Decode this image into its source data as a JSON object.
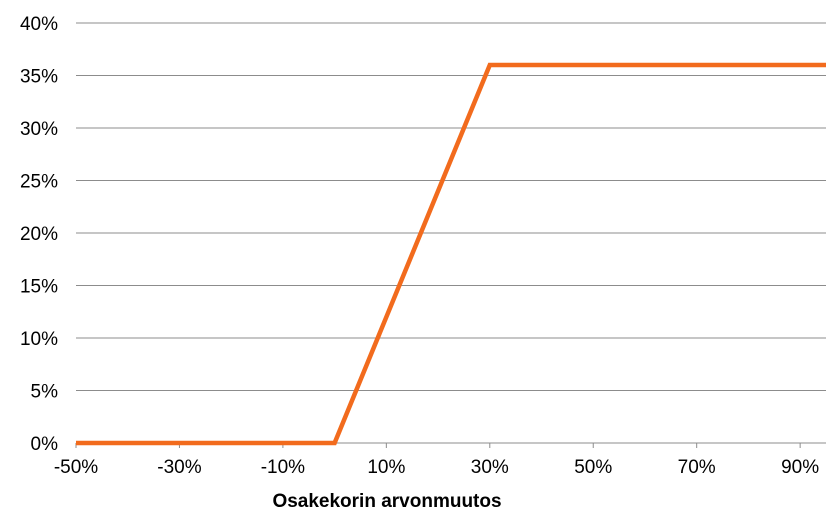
{
  "chart_data": {
    "type": "line",
    "title": "",
    "xlabel": "Osakekorin arvonmuutos",
    "ylabel": "",
    "xlim": [
      -50,
      95
    ],
    "ylim": [
      0,
      40
    ],
    "grid": true,
    "x_ticks": [
      -50,
      -30,
      -10,
      10,
      30,
      50,
      70,
      90
    ],
    "x_tick_labels": [
      "-50%",
      "-30%",
      "-10%",
      "10%",
      "30%",
      "50%",
      "70%",
      "90%"
    ],
    "y_ticks": [
      0,
      5,
      10,
      15,
      20,
      25,
      30,
      35,
      40
    ],
    "y_tick_labels": [
      "0%",
      "5%",
      "10%",
      "15%",
      "20%",
      "25%",
      "30%",
      "35%",
      "40%"
    ],
    "series": [
      {
        "color": "#F26B1D",
        "x": [
          -50,
          0,
          30,
          95
        ],
        "y": [
          0,
          0,
          36,
          36
        ]
      }
    ]
  },
  "colors": {
    "line": "#F26B1D",
    "grid": "#8c8c8c",
    "axis": "#8c8c8c",
    "text": "#000000"
  }
}
